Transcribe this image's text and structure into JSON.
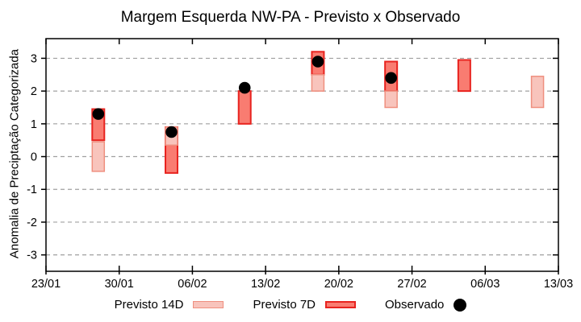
{
  "title": "Margem Esquerda NW-PA - Previsto x Observado",
  "colors": {
    "background": "#ffffff",
    "axis": "#000000",
    "grid": "#a0a0a0",
    "previsto14_fill": "#f8c4bc",
    "previsto14_border": "#ef8f7f",
    "previsto7_fill": "#f97c71",
    "previsto7_border": "#e8231f",
    "observado": "#000000"
  },
  "legend": [
    {
      "label": "Previsto 14D",
      "swatch": "light-pink-bar"
    },
    {
      "label": "Previsto 7D",
      "swatch": "red-bar"
    },
    {
      "label": "Observado",
      "swatch": "black-dot"
    }
  ],
  "chart_data": {
    "type": "bar",
    "subtype": "floating-range-bars-with-scatter",
    "title": "Margem Esquerda NW-PA - Previsto x Observado",
    "xlabel": "",
    "ylabel": "Anomalia de Preciptação Categorizada",
    "ylim": [
      -3.5,
      3.6
    ],
    "yticks": [
      3,
      2,
      1,
      0,
      -1,
      -2,
      -3
    ],
    "xlim_days": [
      0,
      49
    ],
    "xtick_days": [
      0,
      7,
      14,
      21,
      28,
      35,
      42,
      49
    ],
    "xtick_labels": [
      "23/01",
      "30/01",
      "06/02",
      "13/02",
      "20/02",
      "27/02",
      "06/03",
      "13/03"
    ],
    "grid": "horizontal-dashed",
    "legend_position": "bottom-center",
    "series": [
      {
        "name": "Previsto 14D",
        "type": "range-bar",
        "fill": "#f8c4bc",
        "border": "#ef8f7f",
        "points": [
          {
            "date": "28/01",
            "day": 5,
            "low": -0.45,
            "high": 0.45
          },
          {
            "date": "04/02",
            "day": 12,
            "low": 0.35,
            "high": 0.9
          },
          {
            "date": "18/02",
            "day": 26,
            "low": 2.0,
            "high": 2.5
          },
          {
            "date": "25/02",
            "day": 33,
            "low": 1.5,
            "high": 2.0
          },
          {
            "date": "11/03",
            "day": 47,
            "low": 1.5,
            "high": 2.45
          }
        ]
      },
      {
        "name": "Previsto 7D",
        "type": "range-bar",
        "fill": "#f97c71",
        "border": "#e8231f",
        "points": [
          {
            "date": "28/01",
            "day": 5,
            "low": 0.5,
            "high": 1.45
          },
          {
            "date": "04/02",
            "day": 12,
            "low": -0.5,
            "high": 0.9
          },
          {
            "date": "11/02",
            "day": 19,
            "low": 1.0,
            "high": 2.0
          },
          {
            "date": "18/02",
            "day": 26,
            "low": 2.5,
            "high": 3.2
          },
          {
            "date": "25/02",
            "day": 33,
            "low": 2.0,
            "high": 2.9
          },
          {
            "date": "04/03",
            "day": 40,
            "low": 2.0,
            "high": 2.95
          }
        ]
      },
      {
        "name": "Observado",
        "type": "scatter",
        "color": "#000000",
        "points": [
          {
            "date": "28/01",
            "day": 5,
            "value": 1.3
          },
          {
            "date": "04/02",
            "day": 12,
            "value": 0.75
          },
          {
            "date": "11/02",
            "day": 19,
            "value": 2.1
          },
          {
            "date": "18/02",
            "day": 26,
            "value": 2.9
          },
          {
            "date": "25/02",
            "day": 33,
            "value": 2.4
          }
        ]
      }
    ]
  }
}
